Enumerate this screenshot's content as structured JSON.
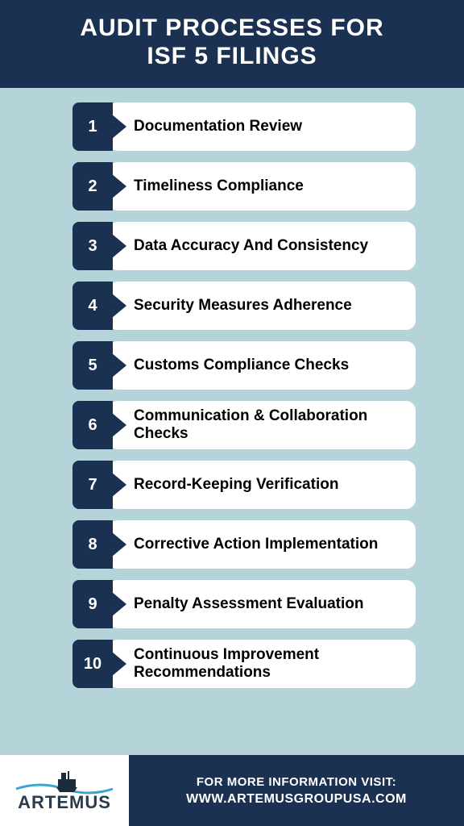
{
  "colors": {
    "header_bg": "#1a3152",
    "header_text": "#ffffff",
    "body_bg": "#b4d4da",
    "badge_bg": "#1a3152",
    "badge_text": "#ffffff",
    "pill_bg": "#ffffff",
    "label_text": "#000000",
    "footer_bg": "#1a3152",
    "footer_text": "#ffffff",
    "logo_text": "#2a3a4a",
    "logo_wave": "#3aa6d0",
    "logo_ship": "#1a2b3d"
  },
  "header": {
    "title_line1": "AUDIT PROCESSES FOR",
    "title_line2": "ISF 5 FILINGS"
  },
  "items": [
    {
      "num": "1",
      "label": "Documentation Review"
    },
    {
      "num": "2",
      "label": "Timeliness Compliance"
    },
    {
      "num": "3",
      "label": "Data Accuracy And Consistency"
    },
    {
      "num": "4",
      "label": "Security Measures Adherence"
    },
    {
      "num": "5",
      "label": "Customs Compliance Checks"
    },
    {
      "num": "6",
      "label": "Communication & Collaboration Checks"
    },
    {
      "num": "7",
      "label": "Record-Keeping Verification"
    },
    {
      "num": "8",
      "label": "Corrective Action Implementation"
    },
    {
      "num": "9",
      "label": "Penalty Assessment Evaluation"
    },
    {
      "num": "10",
      "label": "Continuous Improvement Recommendations"
    }
  ],
  "footer": {
    "logo_text": "ARTEMUS",
    "info_line1": "FOR MORE INFORMATION VISIT:",
    "info_line2": "WWW.ARTEMUSGROUPUSA.COM"
  }
}
